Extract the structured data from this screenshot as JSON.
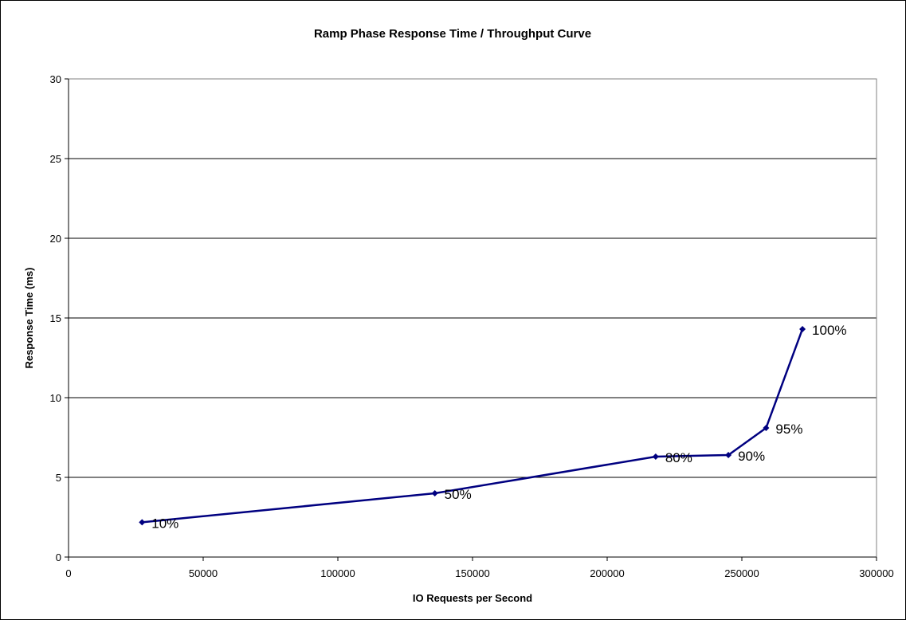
{
  "chart_data": {
    "type": "line",
    "title": "Ramp Phase Response Time / Throughput Curve",
    "xlabel": "IO Requests per Second",
    "ylabel": "Response Time (ms)",
    "xlim": [
      0,
      300000
    ],
    "ylim": [
      0,
      30
    ],
    "xticks": [
      0,
      50000,
      100000,
      150000,
      200000,
      250000,
      300000
    ],
    "yticks": [
      0,
      5,
      10,
      15,
      20,
      25,
      30
    ],
    "grid": true,
    "legend": "none",
    "series": [
      {
        "color": "#000080",
        "marker": "diamond",
        "points": [
          {
            "x": 27300,
            "y": 2.18,
            "label": "10%"
          },
          {
            "x": 136000,
            "y": 4.0,
            "label": "50%"
          },
          {
            "x": 218000,
            "y": 6.3,
            "label": "80%"
          },
          {
            "x": 245000,
            "y": 6.4,
            "label": "90%"
          },
          {
            "x": 259000,
            "y": 8.1,
            "label": "95%"
          },
          {
            "x": 272500,
            "y": 14.3,
            "label": "100%"
          }
        ]
      }
    ]
  }
}
